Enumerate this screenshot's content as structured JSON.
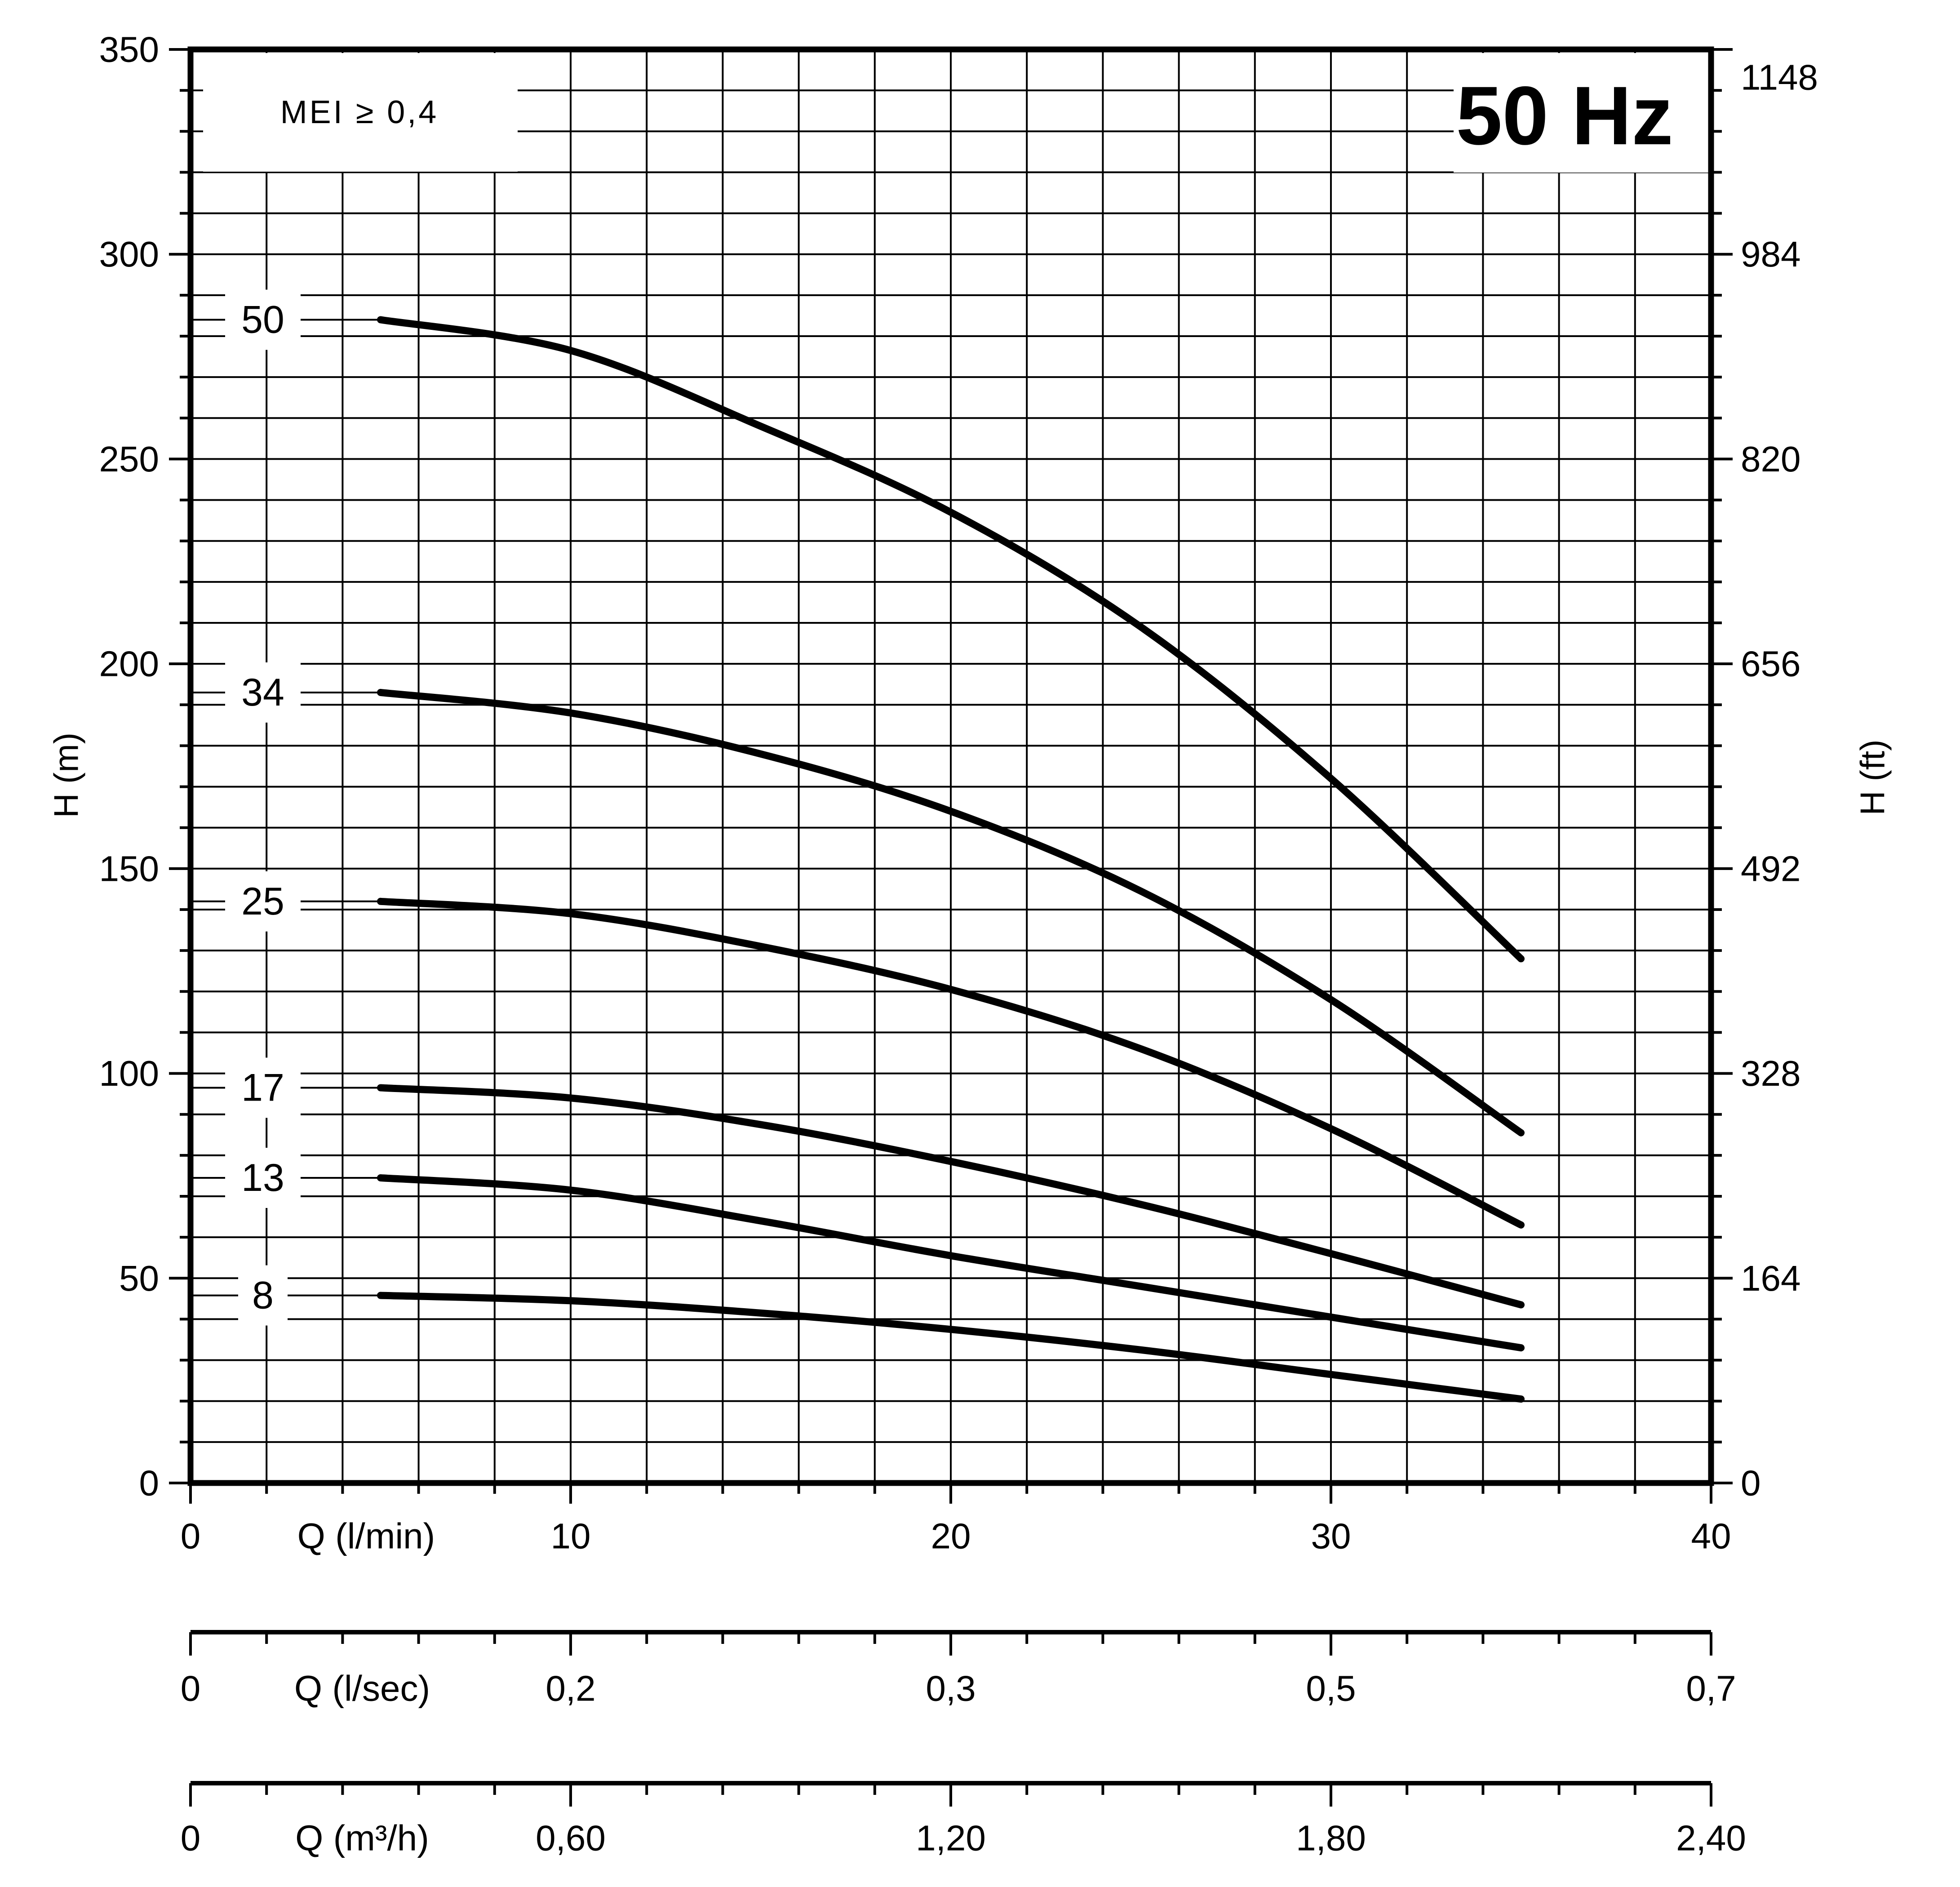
{
  "chart_data": {
    "type": "line",
    "title": "50 Hz",
    "annotation": "MEI ≥ 0,4",
    "x_axis": {
      "label": "Q (l/min)",
      "min": 0,
      "max": 40,
      "major_ticks": [
        0,
        10,
        20,
        30,
        40
      ],
      "minor_step": 2,
      "grid": true
    },
    "y_axis_left": {
      "label": "H (m)",
      "min": 0,
      "max": 350,
      "major_step": 50,
      "minor_step": 10,
      "tick_labels": [
        "0",
        "50",
        "100",
        "150",
        "200",
        "250",
        "300",
        "350"
      ],
      "grid": true
    },
    "y_axis_right": {
      "label": "H (ft)",
      "tick_labels_top_to_bottom": [
        "1148",
        "984",
        "820",
        "656",
        "492",
        "328",
        "164",
        "0"
      ]
    },
    "secondary_x_scales": [
      {
        "label": "Q (l/sec)",
        "tick_labels": [
          "0",
          "0,2",
          "0,3",
          "0,5",
          "0,7"
        ],
        "tick_positions_lmin": [
          0,
          10,
          20,
          30,
          40
        ]
      },
      {
        "label": "Q (m³/h)",
        "tick_labels": [
          "0",
          "0,60",
          "1,20",
          "1,80",
          "2,40"
        ],
        "tick_positions_lmin": [
          0,
          10,
          20,
          30,
          40
        ]
      }
    ],
    "series": [
      {
        "name": "50",
        "points": [
          [
            5,
            284
          ],
          [
            10,
            276.5
          ],
          [
            15,
            258
          ],
          [
            20,
            237
          ],
          [
            25,
            209
          ],
          [
            30,
            172
          ],
          [
            35,
            128
          ]
        ]
      },
      {
        "name": "34",
        "points": [
          [
            5,
            193
          ],
          [
            10,
            188
          ],
          [
            15,
            178
          ],
          [
            20,
            164
          ],
          [
            25,
            144.5
          ],
          [
            30,
            118
          ],
          [
            35,
            85.5
          ]
        ]
      },
      {
        "name": "25",
        "points": [
          [
            5,
            142
          ],
          [
            10,
            139
          ],
          [
            15,
            131
          ],
          [
            20,
            120.5
          ],
          [
            25,
            106
          ],
          [
            30,
            86.5
          ],
          [
            35,
            63
          ]
        ]
      },
      {
        "name": "17",
        "points": [
          [
            5,
            96.5
          ],
          [
            10,
            94
          ],
          [
            15,
            87.5
          ],
          [
            20,
            78.5
          ],
          [
            25,
            68
          ],
          [
            30,
            56
          ],
          [
            35,
            43.5
          ]
        ]
      },
      {
        "name": "13",
        "points": [
          [
            5,
            74.5
          ],
          [
            10,
            71.5
          ],
          [
            15,
            64
          ],
          [
            20,
            55.5
          ],
          [
            25,
            48
          ],
          [
            30,
            40.5
          ],
          [
            35,
            33
          ]
        ]
      },
      {
        "name": "8",
        "points": [
          [
            5,
            45.8
          ],
          [
            10,
            44.5
          ],
          [
            15,
            41.5
          ],
          [
            20,
            37.5
          ],
          [
            25,
            32.5
          ],
          [
            30,
            26.5
          ],
          [
            35,
            20.5
          ]
        ]
      }
    ],
    "legend_position": "curve-start-labels-left",
    "grid_on": true
  }
}
